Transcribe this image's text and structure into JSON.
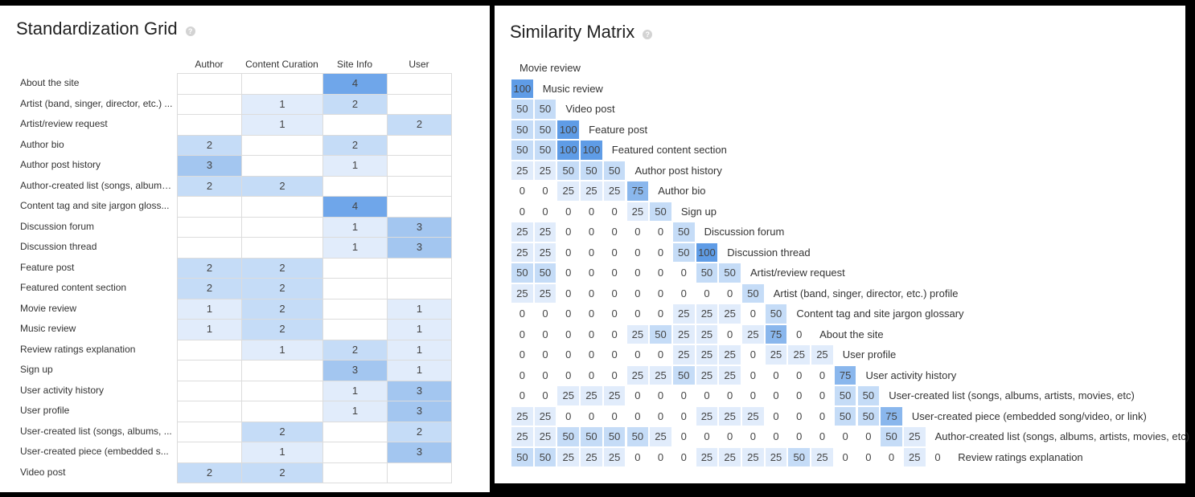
{
  "standardization": {
    "title": "Standardization Grid",
    "help_icon": "?",
    "columns": [
      "Author",
      "Content Curation",
      "Site Info",
      "User"
    ],
    "rows": [
      {
        "label": "About the site",
        "values": [
          "",
          "",
          "4",
          ""
        ]
      },
      {
        "label": "Artist (band, singer, director, etc.) ...",
        "values": [
          "",
          "1",
          "2",
          ""
        ]
      },
      {
        "label": "Artist/review request",
        "values": [
          "",
          "1",
          "",
          "2"
        ]
      },
      {
        "label": "Author bio",
        "values": [
          "2",
          "",
          "2",
          ""
        ]
      },
      {
        "label": "Author post history",
        "values": [
          "3",
          "",
          "1",
          ""
        ]
      },
      {
        "label": "Author-created list (songs, albums...",
        "values": [
          "2",
          "2",
          "",
          ""
        ]
      },
      {
        "label": "Content tag and site jargon gloss...",
        "values": [
          "",
          "",
          "4",
          ""
        ]
      },
      {
        "label": "Discussion forum",
        "values": [
          "",
          "",
          "1",
          "3"
        ]
      },
      {
        "label": "Discussion thread",
        "values": [
          "",
          "",
          "1",
          "3"
        ]
      },
      {
        "label": "Feature post",
        "values": [
          "2",
          "2",
          "",
          ""
        ]
      },
      {
        "label": "Featured content section",
        "values": [
          "2",
          "2",
          "",
          ""
        ]
      },
      {
        "label": "Movie review",
        "values": [
          "1",
          "2",
          "",
          "1"
        ]
      },
      {
        "label": "Music review",
        "values": [
          "1",
          "2",
          "",
          "1"
        ]
      },
      {
        "label": "Review ratings explanation",
        "values": [
          "",
          "1",
          "2",
          "1"
        ]
      },
      {
        "label": "Sign up",
        "values": [
          "",
          "",
          "3",
          "1"
        ]
      },
      {
        "label": "User activity history",
        "values": [
          "",
          "",
          "1",
          "3"
        ]
      },
      {
        "label": "User profile",
        "values": [
          "",
          "",
          "1",
          "3"
        ]
      },
      {
        "label": "User-created list (songs, albums, ...",
        "values": [
          "",
          "2",
          "",
          "2"
        ]
      },
      {
        "label": "User-created piece (embedded s...",
        "values": [
          "",
          "1",
          "",
          "3"
        ]
      },
      {
        "label": "Video post",
        "values": [
          "2",
          "2",
          "",
          ""
        ]
      }
    ]
  },
  "similarity": {
    "title": "Similarity Matrix",
    "help_icon": "?",
    "labels": [
      "Movie review",
      "Music review",
      "Video post",
      "Feature post",
      "Featured content section",
      "Author post history",
      "Author bio",
      "Sign up",
      "Discussion forum",
      "Discussion thread",
      "Artist/review request",
      "Artist (band, singer, director, etc.) profile",
      "Content tag and site jargon glossary",
      "About the site",
      "User profile",
      "User activity history",
      "User-created list (songs, albums, artists, movies, etc)",
      "User-created piece (embedded song/video, or link)",
      "Author-created list (songs, albums, artists, movies, etc)",
      "Review ratings explanation"
    ],
    "rows": [
      [],
      [
        "100"
      ],
      [
        "50",
        "50"
      ],
      [
        "50",
        "50",
        "100"
      ],
      [
        "50",
        "50",
        "100",
        "100"
      ],
      [
        "25",
        "25",
        "50",
        "50",
        "50"
      ],
      [
        "0",
        "0",
        "25",
        "25",
        "25",
        "75"
      ],
      [
        "0",
        "0",
        "0",
        "0",
        "0",
        "25",
        "50"
      ],
      [
        "25",
        "25",
        "0",
        "0",
        "0",
        "0",
        "0",
        "50"
      ],
      [
        "25",
        "25",
        "0",
        "0",
        "0",
        "0",
        "0",
        "50",
        "100"
      ],
      [
        "50",
        "50",
        "0",
        "0",
        "0",
        "0",
        "0",
        "0",
        "50",
        "50"
      ],
      [
        "25",
        "25",
        "0",
        "0",
        "0",
        "0",
        "0",
        "0",
        "0",
        "0",
        "50"
      ],
      [
        "0",
        "0",
        "0",
        "0",
        "0",
        "0",
        "0",
        "25",
        "25",
        "25",
        "0",
        "50"
      ],
      [
        "0",
        "0",
        "0",
        "0",
        "0",
        "25",
        "50",
        "25",
        "25",
        "0",
        "25",
        "75",
        "0"
      ],
      [
        "0",
        "0",
        "0",
        "0",
        "0",
        "0",
        "0",
        "25",
        "25",
        "25",
        "0",
        "25",
        "25",
        "25"
      ],
      [
        "0",
        "0",
        "0",
        "0",
        "0",
        "25",
        "25",
        "50",
        "25",
        "25",
        "0",
        "0",
        "0",
        "0",
        "75"
      ],
      [
        "0",
        "0",
        "25",
        "25",
        "25",
        "0",
        "0",
        "0",
        "0",
        "0",
        "0",
        "0",
        "0",
        "0",
        "50",
        "50"
      ],
      [
        "25",
        "25",
        "0",
        "0",
        "0",
        "0",
        "0",
        "0",
        "25",
        "25",
        "25",
        "0",
        "0",
        "0",
        "50",
        "50",
        "75"
      ],
      [
        "25",
        "25",
        "50",
        "50",
        "50",
        "50",
        "25",
        "0",
        "0",
        "0",
        "0",
        "0",
        "0",
        "0",
        "0",
        "0",
        "50",
        "25"
      ],
      [
        "50",
        "50",
        "25",
        "25",
        "25",
        "0",
        "0",
        "0",
        "25",
        "25",
        "25",
        "25",
        "50",
        "25",
        "0",
        "0",
        "0",
        "25",
        "0"
      ]
    ]
  },
  "colors": {
    "scale_1": "#e1ecfb",
    "scale_2": "#c5dcf7",
    "scale_3": "#a3c6f0",
    "scale_4": "#6fa6ea",
    "sim_25": "#e1ecfb",
    "sim_50": "#c5dcf7",
    "sim_75": "#8ab7ed",
    "sim_100": "#5f9ce6"
  }
}
